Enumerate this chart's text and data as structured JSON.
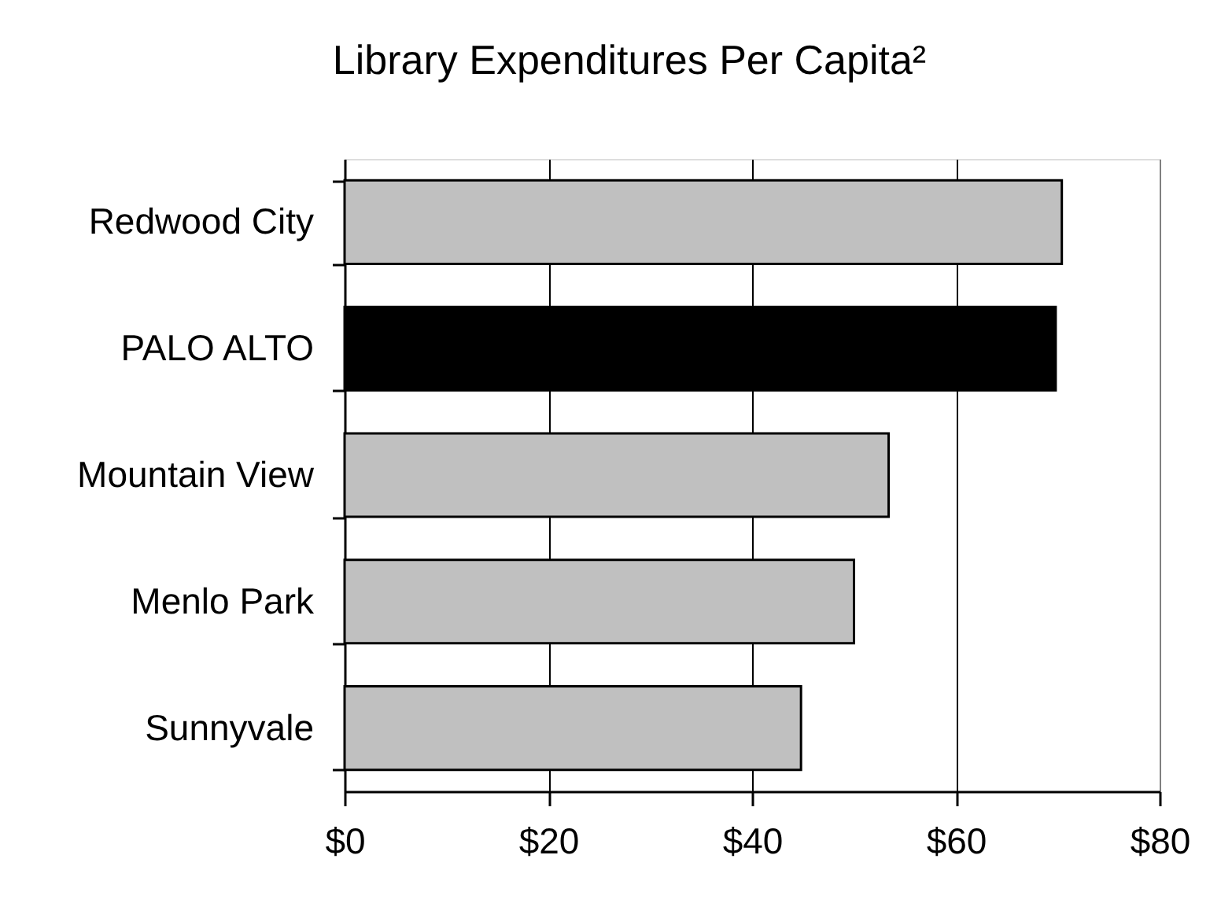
{
  "chart_data": {
    "type": "bar",
    "orientation": "horizontal",
    "title": "Library Expenditures Per Capita²",
    "categories": [
      "Redwood City",
      "PALO ALTO",
      "Mountain View",
      "Menlo Park",
      "Sunnyvale"
    ],
    "values": [
      70.4,
      69.8,
      53.4,
      50,
      44.8
    ],
    "colors": [
      "#c0c0c0",
      "#000000",
      "#c0c0c0",
      "#c0c0c0",
      "#c0c0c0"
    ],
    "xlim": [
      0,
      80
    ],
    "xticks": [
      {
        "value": 0,
        "label": "$0"
      },
      {
        "value": 20,
        "label": "$20"
      },
      {
        "value": 40,
        "label": "$40"
      },
      {
        "value": 60,
        "label": "$60"
      },
      {
        "value": 80,
        "label": "$80"
      }
    ],
    "grid": "x"
  }
}
